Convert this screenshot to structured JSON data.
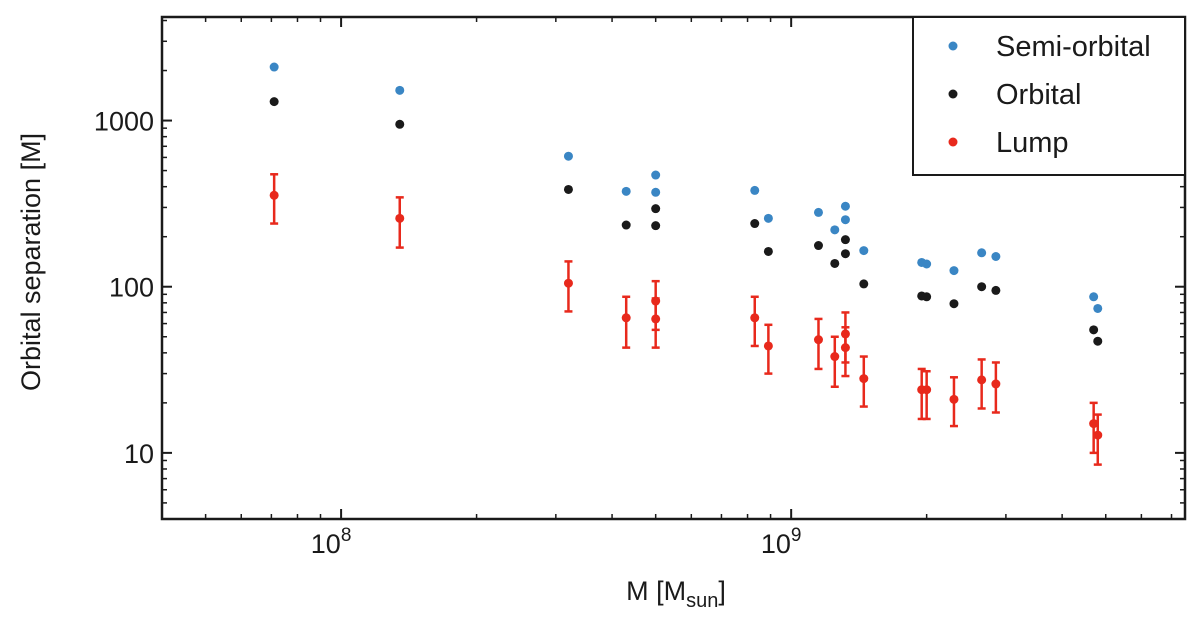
{
  "chart_data": {
    "type": "scatter",
    "xscale": "log",
    "yscale": "log",
    "xlabel": "M [M",
    "xlabel_sub": "sun",
    "xlabel_close": "]",
    "ylabel": "Orbital separation [M]",
    "xlim": [
      40000000,
      7500000000
    ],
    "ylim": [
      4,
      4200
    ],
    "x_major_ticks": [
      {
        "value": 100000000,
        "base": "10",
        "exp": "8"
      },
      {
        "value": 1000000000,
        "base": "10",
        "exp": "9"
      }
    ],
    "y_major_ticks": [
      {
        "value": 10,
        "label": "10"
      },
      {
        "value": 100,
        "label": "100"
      },
      {
        "value": 1000,
        "label": "1000"
      }
    ],
    "legend_position": "top-right",
    "series": [
      {
        "name": "Semi-orbital",
        "color": "#3a86c4",
        "points": [
          {
            "x": 71000000,
            "y": 2100
          },
          {
            "x": 135000000,
            "y": 1520
          },
          {
            "x": 320000000,
            "y": 610
          },
          {
            "x": 430000000,
            "y": 375
          },
          {
            "x": 500000000,
            "y": 470
          },
          {
            "x": 500000000,
            "y": 370
          },
          {
            "x": 830000000,
            "y": 380
          },
          {
            "x": 890000000,
            "y": 258
          },
          {
            "x": 1150000000,
            "y": 280
          },
          {
            "x": 1250000000,
            "y": 220
          },
          {
            "x": 1320000000,
            "y": 305
          },
          {
            "x": 1320000000,
            "y": 253
          },
          {
            "x": 1450000000,
            "y": 165
          },
          {
            "x": 1950000000,
            "y": 140
          },
          {
            "x": 2000000000,
            "y": 137
          },
          {
            "x": 2300000000,
            "y": 125
          },
          {
            "x": 2650000000,
            "y": 160
          },
          {
            "x": 2850000000,
            "y": 152
          },
          {
            "x": 4700000000,
            "y": 87
          },
          {
            "x": 4800000000,
            "y": 74
          }
        ]
      },
      {
        "name": "Orbital",
        "color": "#1a1a1a",
        "points": [
          {
            "x": 71000000,
            "y": 1300
          },
          {
            "x": 135000000,
            "y": 950
          },
          {
            "x": 320000000,
            "y": 385
          },
          {
            "x": 430000000,
            "y": 235
          },
          {
            "x": 500000000,
            "y": 295
          },
          {
            "x": 500000000,
            "y": 233
          },
          {
            "x": 830000000,
            "y": 240
          },
          {
            "x": 890000000,
            "y": 163
          },
          {
            "x": 1150000000,
            "y": 177
          },
          {
            "x": 1250000000,
            "y": 138
          },
          {
            "x": 1320000000,
            "y": 192
          },
          {
            "x": 1320000000,
            "y": 158
          },
          {
            "x": 1450000000,
            "y": 104
          },
          {
            "x": 1950000000,
            "y": 88
          },
          {
            "x": 2000000000,
            "y": 87
          },
          {
            "x": 2300000000,
            "y": 79
          },
          {
            "x": 2650000000,
            "y": 100
          },
          {
            "x": 2850000000,
            "y": 95
          },
          {
            "x": 4700000000,
            "y": 55
          },
          {
            "x": 4800000000,
            "y": 47
          }
        ]
      },
      {
        "name": "Lump",
        "color": "#e8291c",
        "points": [
          {
            "x": 71000000,
            "y": 355,
            "ylow": 240,
            "yhigh": 475
          },
          {
            "x": 135000000,
            "y": 258,
            "ylow": 172,
            "yhigh": 345
          },
          {
            "x": 320000000,
            "y": 105,
            "ylow": 71,
            "yhigh": 142
          },
          {
            "x": 430000000,
            "y": 65,
            "ylow": 43,
            "yhigh": 87
          },
          {
            "x": 500000000,
            "y": 82,
            "ylow": 55,
            "yhigh": 108
          },
          {
            "x": 500000000,
            "y": 64,
            "ylow": 43,
            "yhigh": 85
          },
          {
            "x": 830000000,
            "y": 65,
            "ylow": 44,
            "yhigh": 87
          },
          {
            "x": 890000000,
            "y": 44,
            "ylow": 30,
            "yhigh": 59
          },
          {
            "x": 1150000000,
            "y": 48,
            "ylow": 32,
            "yhigh": 64
          },
          {
            "x": 1250000000,
            "y": 38,
            "ylow": 25,
            "yhigh": 50
          },
          {
            "x": 1320000000,
            "y": 52,
            "ylow": 35,
            "yhigh": 70
          },
          {
            "x": 1320000000,
            "y": 43,
            "ylow": 29,
            "yhigh": 57
          },
          {
            "x": 1450000000,
            "y": 28,
            "ylow": 19,
            "yhigh": 38
          },
          {
            "x": 1950000000,
            "y": 24,
            "ylow": 16,
            "yhigh": 32
          },
          {
            "x": 2000000000,
            "y": 24,
            "ylow": 16,
            "yhigh": 31
          },
          {
            "x": 2300000000,
            "y": 21,
            "ylow": 14.5,
            "yhigh": 28.5
          },
          {
            "x": 2650000000,
            "y": 27.5,
            "ylow": 18.5,
            "yhigh": 36.5
          },
          {
            "x": 2850000000,
            "y": 26,
            "ylow": 17.5,
            "yhigh": 35
          },
          {
            "x": 4700000000,
            "y": 15,
            "ylow": 10,
            "yhigh": 20
          },
          {
            "x": 4800000000,
            "y": 12.8,
            "ylow": 8.5,
            "yhigh": 17
          }
        ]
      }
    ]
  }
}
